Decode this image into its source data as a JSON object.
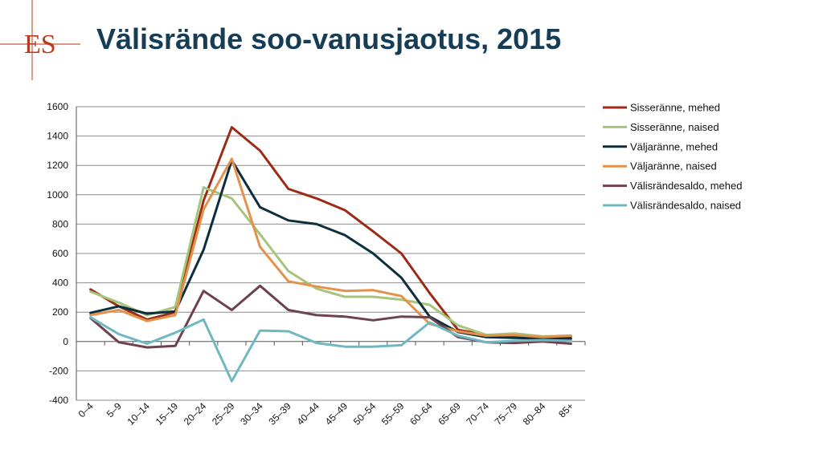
{
  "slide": {
    "title": "Välisrände soo-vanusjaotus, 2015",
    "logo": {
      "text": "ES",
      "color": "#b83a1e"
    }
  },
  "chart_data": {
    "type": "line",
    "title": "",
    "xlabel": "",
    "ylabel": "",
    "categories": [
      "0–4",
      "5–9",
      "10–14",
      "15–19",
      "20–24",
      "25–29",
      "30–34",
      "35–39",
      "40–44",
      "45–49",
      "50–54",
      "55–59",
      "60–64",
      "65–69",
      "70–74",
      "75–79",
      "80–84",
      "85+"
    ],
    "ylim": [
      -400,
      1600
    ],
    "yticks": [
      1600,
      1400,
      1200,
      1000,
      800,
      600,
      400,
      200,
      0,
      -200,
      -400
    ],
    "grid": true,
    "legend_position": "right",
    "series": [
      {
        "name": "Sisseränne, mehed",
        "color": "#9b2b17",
        "values": [
          355,
          240,
          150,
          200,
          960,
          1460,
          1300,
          1040,
          975,
          895,
          750,
          600,
          330,
          80,
          45,
          35,
          25,
          35
        ]
      },
      {
        "name": "Sisseränne, naised",
        "color": "#a6c47a",
        "values": [
          340,
          265,
          180,
          235,
          1050,
          975,
          730,
          480,
          360,
          305,
          305,
          285,
          250,
          110,
          45,
          55,
          35,
          40
        ]
      },
      {
        "name": "Väljaränne, mehed",
        "color": "#0b2f3f",
        "values": [
          195,
          240,
          190,
          205,
          625,
          1235,
          915,
          825,
          800,
          725,
          600,
          435,
          170,
          65,
          30,
          25,
          20,
          20
        ]
      },
      {
        "name": "Väljaränne, naised",
        "color": "#e4914b",
        "values": [
          180,
          215,
          140,
          180,
          900,
          1245,
          645,
          410,
          375,
          345,
          350,
          310,
          120,
          70,
          40,
          45,
          30,
          40
        ]
      },
      {
        "name": "Välisrändesaldo, mehed",
        "color": "#6d4250",
        "values": [
          160,
          -5,
          -40,
          -30,
          345,
          215,
          380,
          215,
          180,
          170,
          145,
          170,
          165,
          30,
          -5,
          -10,
          0,
          -15
        ]
      },
      {
        "name": "Välisrändesaldo, naised",
        "color": "#6fb8c2",
        "values": [
          165,
          50,
          -15,
          60,
          150,
          -270,
          75,
          70,
          -10,
          -35,
          -35,
          -25,
          130,
          40,
          -5,
          5,
          10,
          5
        ]
      }
    ]
  }
}
